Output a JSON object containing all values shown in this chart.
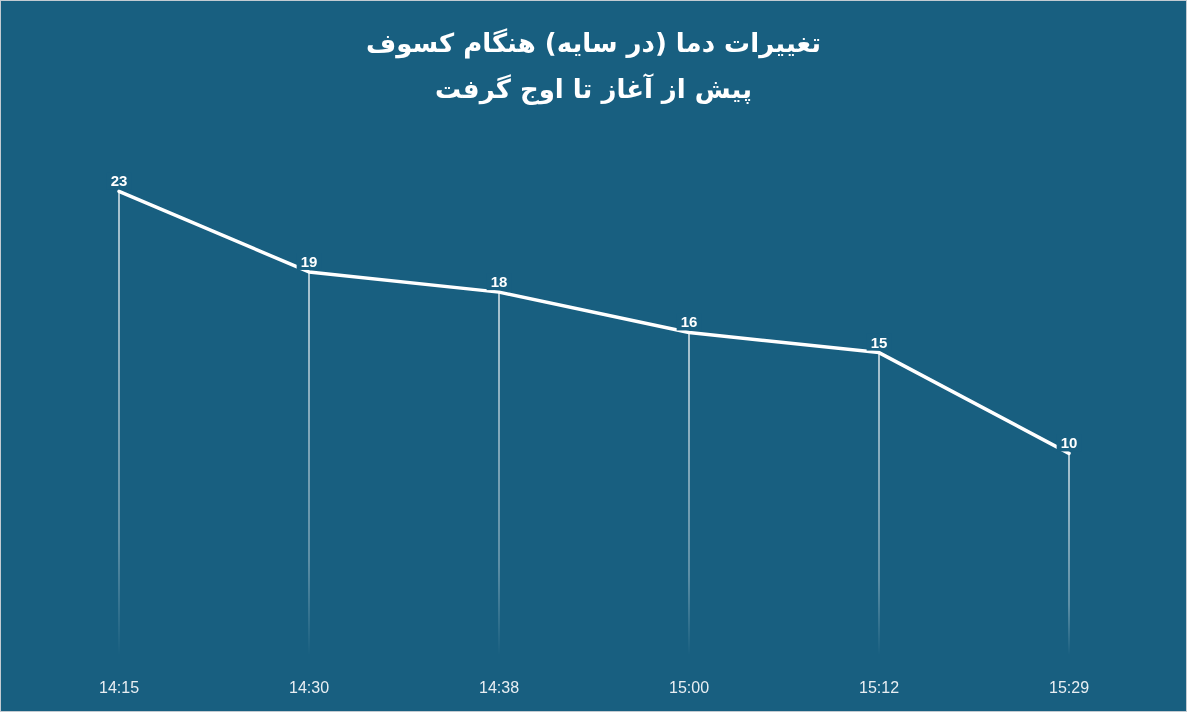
{
  "chart_data": {
    "type": "line",
    "title": "تغییرات دما (در سایه) هنگام کسوف",
    "subtitle": "پیش از آغاز تا اوج گرفت",
    "categories": [
      "14:15",
      "14:30",
      "14:38",
      "15:00",
      "15:12",
      "15:29"
    ],
    "series": [
      {
        "color": "#ffffff",
        "values": [
          23,
          19,
          18,
          16,
          15,
          10
        ],
        "value_labels": [
          "23",
          "19",
          "18",
          "16",
          "15",
          "10"
        ]
      },
      {
        "type": "bar",
        "color": "#ffffff",
        "values": [
          23,
          19,
          18,
          16,
          15,
          10
        ]
      }
    ],
    "marker": "none",
    "line_style": "solid",
    "grid": false,
    "tick_labels": "x"
  }
}
